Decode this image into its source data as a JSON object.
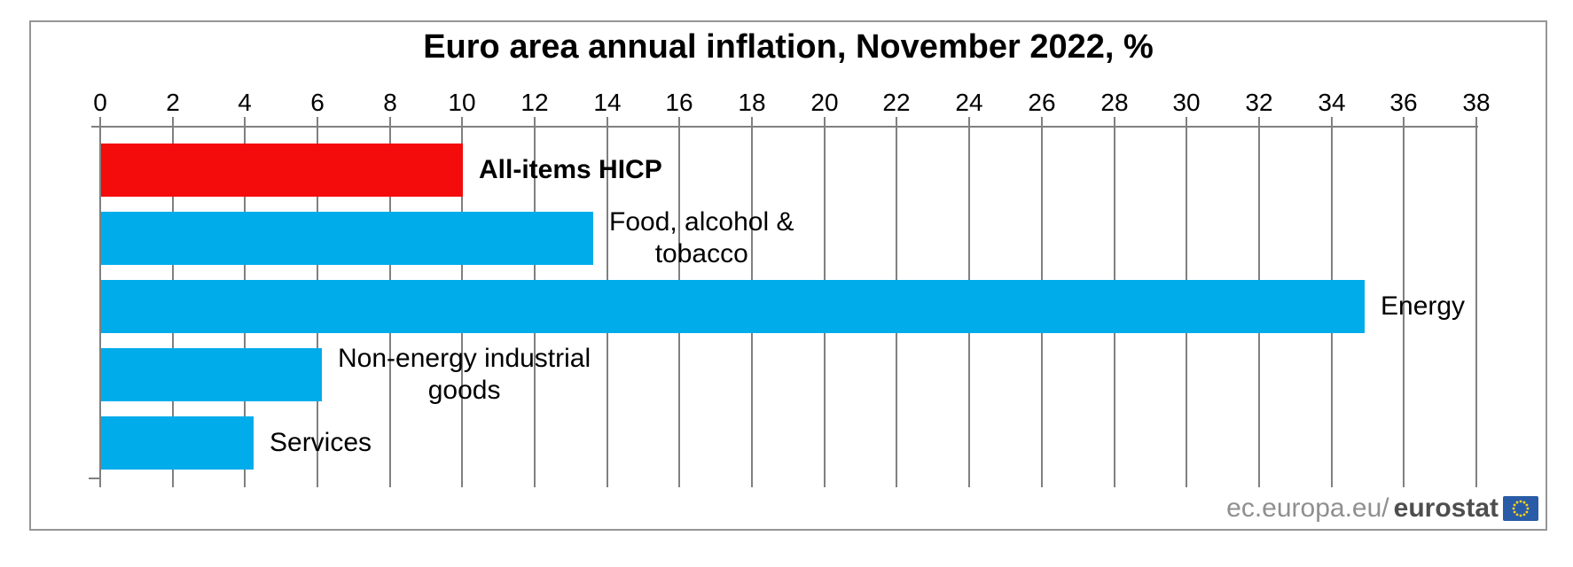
{
  "chart_data": {
    "type": "bar",
    "orientation": "horizontal",
    "title": "Euro area annual inflation, November 2022, %",
    "xlabel": "",
    "ylabel": "",
    "xlim": [
      0,
      38
    ],
    "tick_interval": 2,
    "tick_labels": [
      "0",
      "2",
      "4",
      "6",
      "8",
      "10",
      "12",
      "14",
      "16",
      "18",
      "20",
      "22",
      "24",
      "26",
      "28",
      "30",
      "32",
      "34",
      "36",
      "38"
    ],
    "grid": true,
    "legend_position": "none",
    "categories": [
      "All-items HICP",
      "Food, alcohol & tobacco",
      "Energy",
      "Non-energy industrial goods",
      "Services"
    ],
    "values": [
      10.0,
      13.6,
      34.9,
      6.1,
      4.2
    ],
    "bars": [
      {
        "category": "All-items HICP",
        "value": 10.0,
        "color": "#f40b0b",
        "label_lines": [
          "All-items HICP"
        ],
        "label_bold": true
      },
      {
        "category": "Food, alcohol & tobacco",
        "value": 13.6,
        "color": "#00acea",
        "label_lines": [
          "Food, alcohol &",
          "tobacco"
        ],
        "label_bold": false
      },
      {
        "category": "Energy",
        "value": 34.9,
        "color": "#00acea",
        "label_lines": [
          "Energy"
        ],
        "label_bold": false
      },
      {
        "category": "Non-energy industrial goods",
        "value": 6.1,
        "color": "#00acea",
        "label_lines": [
          "Non-energy industrial",
          "goods"
        ],
        "label_bold": false
      },
      {
        "category": "Services",
        "value": 4.2,
        "color": "#00acea",
        "label_lines": [
          "Services"
        ],
        "label_bold": false
      }
    ]
  },
  "credit": {
    "prefix": "ec.europa.eu/",
    "brand": "eurostat",
    "flag_icon": "eu-flag-icon"
  },
  "colors": {
    "grid": "#808080",
    "axis": "#808080",
    "frame_border": "#959595",
    "bar_red": "#f40b0b",
    "bar_blue": "#00acea",
    "credit_prefix": "#8f8f8f",
    "credit_brand": "#4e4e4e",
    "flag_bg": "#2a5ba7",
    "flag_stars": "#ffd617"
  }
}
